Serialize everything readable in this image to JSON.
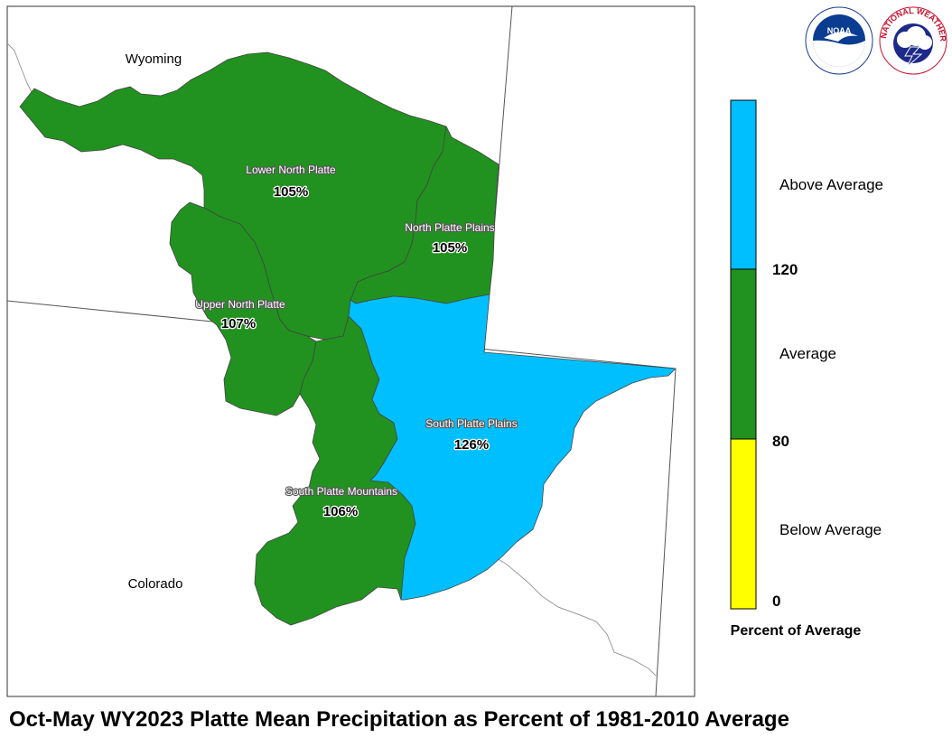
{
  "title": "Oct-May WY2023 Platte Mean Precipitation as Percent of 1981-2010 Average",
  "states": {
    "wyoming": "Wyoming",
    "colorado": "Colorado"
  },
  "basins": [
    {
      "name": "Lower North Platte",
      "percent": "105%",
      "category": "Average"
    },
    {
      "name": "North Platte Plains",
      "percent": "105%",
      "category": "Average"
    },
    {
      "name": "Upper North Platte",
      "percent": "107%",
      "category": "Average"
    },
    {
      "name": "South Platte Plains",
      "percent": "126%",
      "category": "Above Average"
    },
    {
      "name": "South Platte Mountains",
      "percent": "106%",
      "category": "Average"
    }
  ],
  "legend": {
    "title": "Percent of Average",
    "categories": [
      {
        "label": "Above Average",
        "color": "#00BFFF"
      },
      {
        "label": "Average",
        "color": "#21921F"
      },
      {
        "label": "Below Average",
        "color": "#FFFF00"
      }
    ],
    "ticks": [
      "120",
      "80",
      "0"
    ]
  },
  "logos": {
    "noaa": {
      "text": "NOAA",
      "icon": "noaa-logo-icon"
    },
    "nws": {
      "text": "NATIONAL WEATHER SERVICE",
      "icon": "nws-logo-icon"
    }
  },
  "colors": {
    "above": "#00BFFF",
    "average": "#21921F",
    "below": "#FFFF00",
    "border": "#555555"
  }
}
